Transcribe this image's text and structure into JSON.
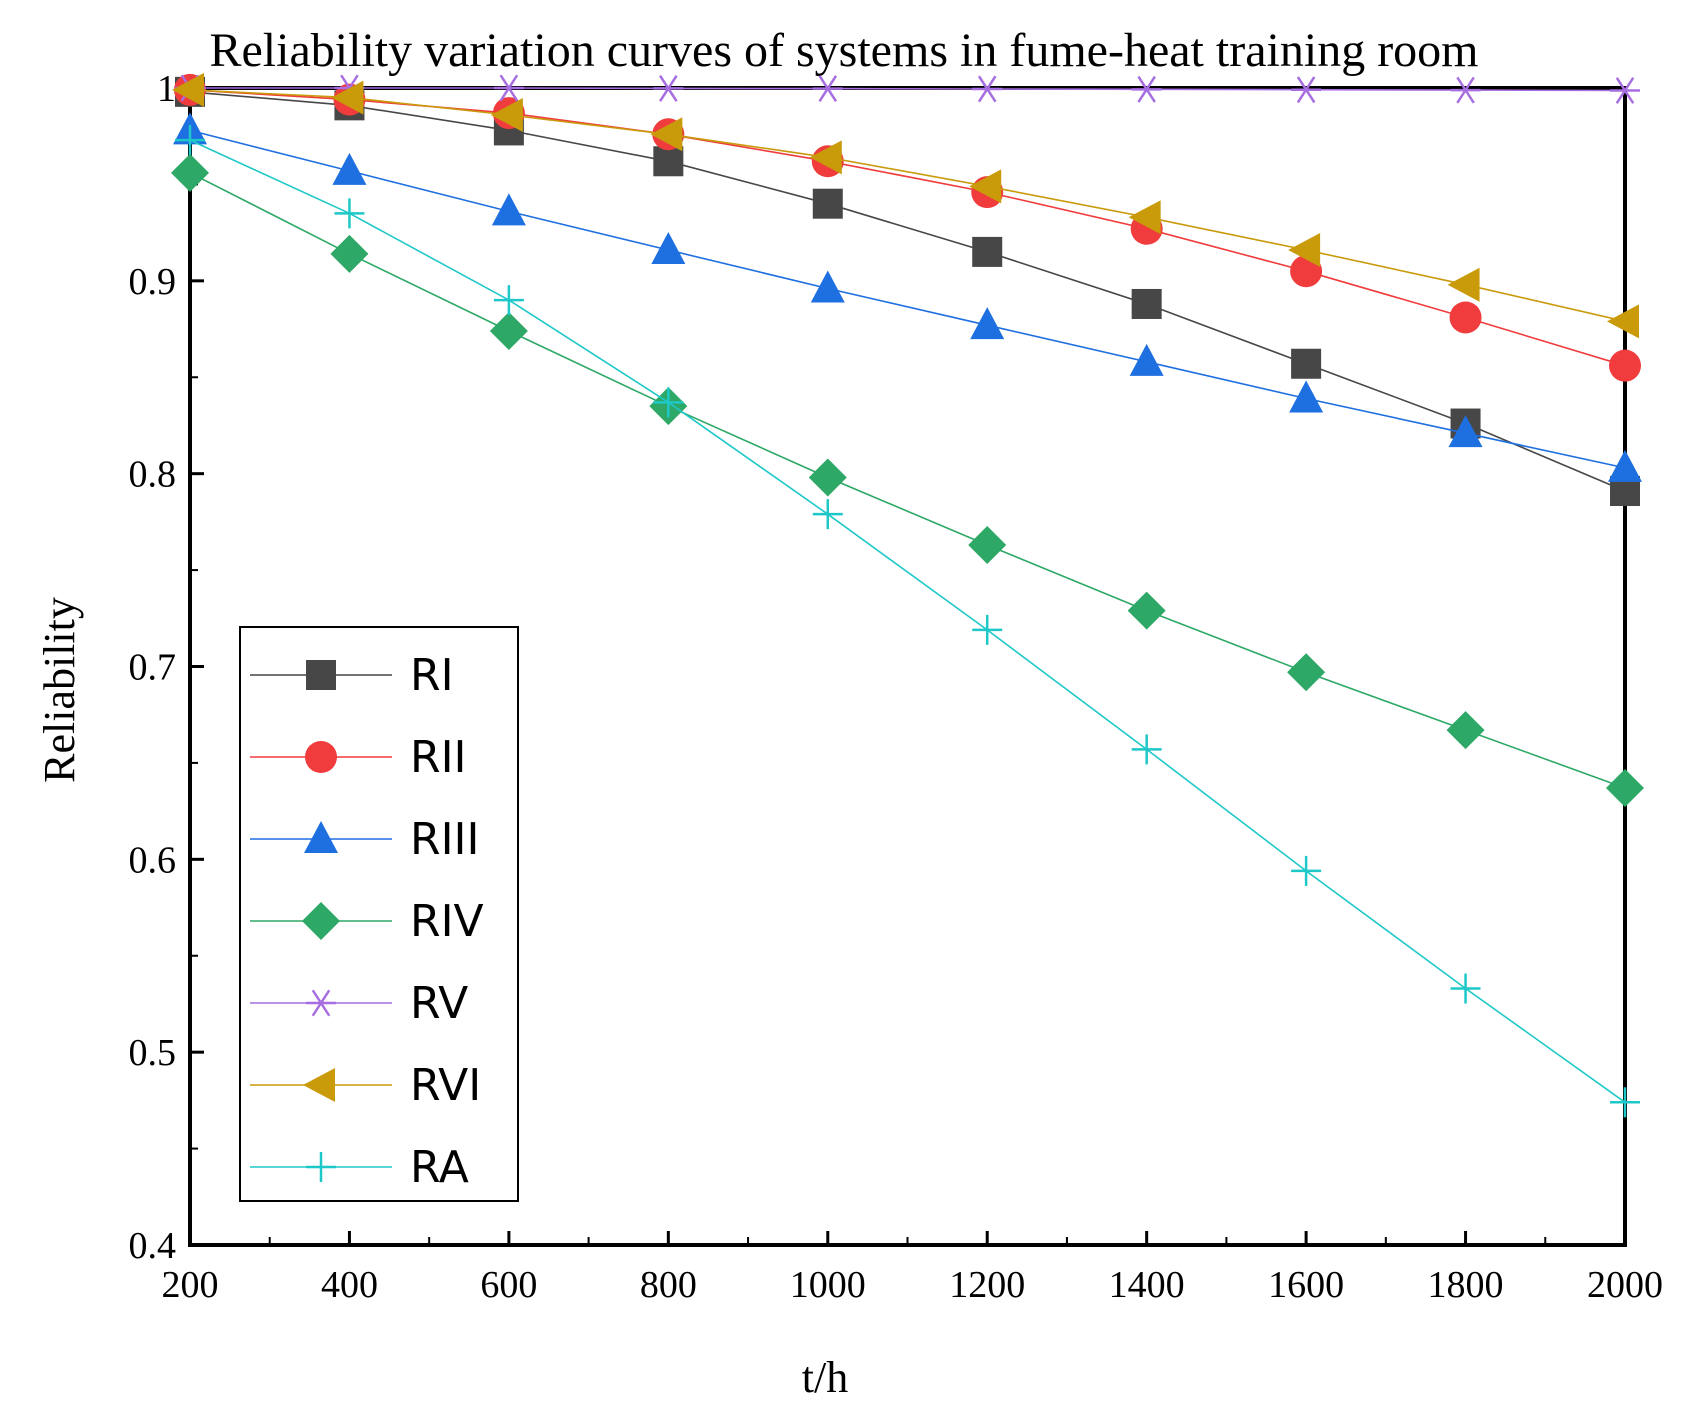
{
  "chart_data": {
    "type": "line",
    "title": "Reliability variation curves of systems in fume-heat training room",
    "xlabel": "t/h",
    "ylabel": "Reliability",
    "xlim": [
      200,
      2000
    ],
    "ylim": [
      0.4,
      1.0
    ],
    "x": [
      200,
      400,
      600,
      800,
      1000,
      1200,
      1400,
      1600,
      1800,
      2000
    ],
    "x_ticks": [
      "200",
      "400",
      "600",
      "800",
      "1000",
      "1200",
      "1400",
      "1600",
      "1800",
      "2000"
    ],
    "y_ticks": [
      "0.4",
      "0.5",
      "0.6",
      "0.7",
      "0.8",
      "0.9",
      "1"
    ],
    "legend_position": "bottom-left",
    "series": [
      {
        "name": "RI",
        "color": "#474747",
        "marker": "square",
        "values": [
          0.998,
          0.991,
          0.978,
          0.962,
          0.94,
          0.915,
          0.888,
          0.857,
          0.826,
          0.791
        ]
      },
      {
        "name": "RII",
        "color": "#f03c3c",
        "marker": "circle",
        "values": [
          0.999,
          0.994,
          0.987,
          0.976,
          0.962,
          0.946,
          0.927,
          0.905,
          0.881,
          0.856
        ]
      },
      {
        "name": "RIII",
        "color": "#1e6fe0",
        "marker": "triangle-up",
        "values": [
          0.978,
          0.957,
          0.936,
          0.916,
          0.896,
          0.877,
          0.858,
          0.839,
          0.821,
          0.803
        ]
      },
      {
        "name": "RIV",
        "color": "#2ea866",
        "marker": "diamond",
        "values": [
          0.956,
          0.914,
          0.874,
          0.835,
          0.798,
          0.763,
          0.729,
          0.697,
          0.667,
          0.637
        ]
      },
      {
        "name": "RV",
        "color": "#a66ee0",
        "marker": "asterisk",
        "values": [
          1.0,
          1.0,
          1.0,
          0.9998,
          0.9997,
          0.9995,
          0.9993,
          0.9991,
          0.9989,
          0.9987
        ]
      },
      {
        "name": "RVI",
        "color": "#c99a0a",
        "marker": "triangle-left",
        "values": [
          0.999,
          0.995,
          0.986,
          0.976,
          0.964,
          0.949,
          0.933,
          0.916,
          0.898,
          0.879
        ]
      },
      {
        "name": "RA",
        "color": "#1fc8c8",
        "marker": "plus",
        "values": [
          0.973,
          0.935,
          0.89,
          0.837,
          0.779,
          0.719,
          0.657,
          0.594,
          0.533,
          0.474
        ]
      }
    ]
  }
}
